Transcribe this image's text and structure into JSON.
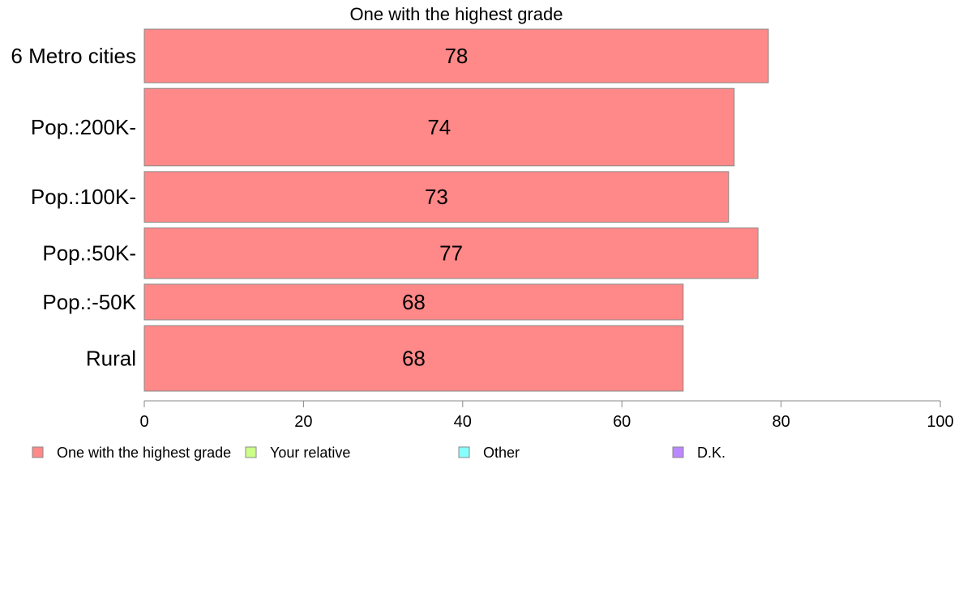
{
  "chart_data": {
    "type": "bar",
    "orientation": "horizontal",
    "title": "One with the highest grade",
    "categories": [
      "6 Metro cities",
      "Pop.:200K-",
      "Pop.:100K-",
      "Pop.:50K-",
      "Pop.:-50K",
      "Rural"
    ],
    "values": [
      78.4,
      74.1,
      73.4,
      77.1,
      67.7,
      67.7
    ],
    "value_labels": [
      "78",
      "74",
      "73",
      "77",
      "68",
      "68"
    ],
    "bar_weights": [
      0.9,
      1.3,
      0.85,
      0.85,
      0.6,
      1.1
    ],
    "xlim": [
      0,
      100
    ],
    "xticks": [
      0,
      20,
      40,
      60,
      80,
      100
    ],
    "xtick_labels": [
      "0",
      "20",
      "40",
      "60",
      "80",
      "100"
    ],
    "grid": false,
    "legend_position": "bottom",
    "legend": [
      {
        "name": "One with the highest grade",
        "color": "#ff8888"
      },
      {
        "name": "Your relative",
        "color": "#ccff88"
      },
      {
        "name": "Other",
        "color": "#88ffff"
      },
      {
        "name": "D.K.",
        "color": "#bb88ff"
      }
    ],
    "bar_color": "#ff8888",
    "bar_edge_color": "#888888",
    "axis_color": "#888888"
  }
}
